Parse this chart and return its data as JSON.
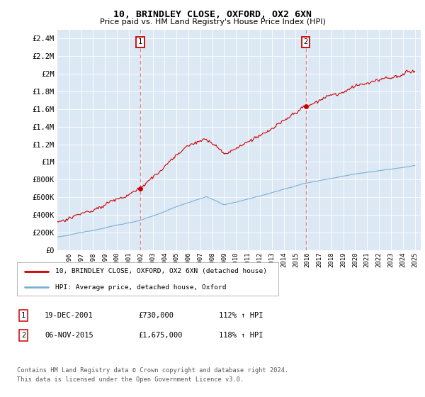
{
  "title": "10, BRINDLEY CLOSE, OXFORD, OX2 6XN",
  "subtitle": "Price paid vs. HM Land Registry's House Price Index (HPI)",
  "fig_bg_color": "#ffffff",
  "plot_bg_color": "#dce9f5",
  "ylim": [
    0,
    2500000
  ],
  "yticks": [
    0,
    200000,
    400000,
    600000,
    800000,
    1000000,
    1200000,
    1400000,
    1600000,
    1800000,
    2000000,
    2200000,
    2400000
  ],
  "ytick_labels": [
    "£0",
    "£200K",
    "£400K",
    "£600K",
    "£800K",
    "£1M",
    "£1.2M",
    "£1.4M",
    "£1.6M",
    "£1.8M",
    "£2M",
    "£2.2M",
    "£2.4M"
  ],
  "xlim_start": 1995.0,
  "xlim_end": 2025.5,
  "sale1_date": 2001.96,
  "sale1_price": 730000,
  "sale2_date": 2015.84,
  "sale2_price": 1675000,
  "legend_line1": "10, BRINDLEY CLOSE, OXFORD, OX2 6XN (detached house)",
  "legend_line2": "HPI: Average price, detached house, Oxford",
  "table_row1": [
    "1",
    "19-DEC-2001",
    "£730,000",
    "112% ↑ HPI"
  ],
  "table_row2": [
    "2",
    "06-NOV-2015",
    "£1,675,000",
    "118% ↑ HPI"
  ],
  "footer": "Contains HM Land Registry data © Crown copyright and database right 2024.\nThis data is licensed under the Open Government Licence v3.0.",
  "hpi_color": "#7bafd4",
  "price_color": "#cc0000",
  "grid_color": "#ffffff",
  "dashed_color": "#e08080"
}
